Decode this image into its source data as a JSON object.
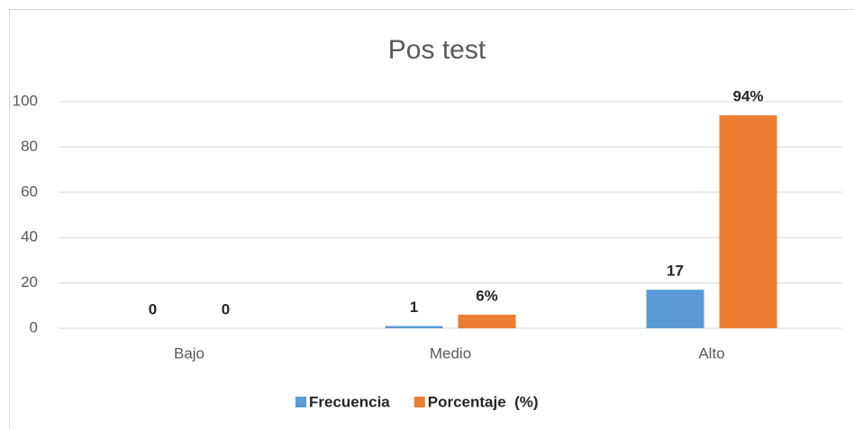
{
  "chart_data": {
    "type": "bar",
    "title": "Pos test",
    "categories": [
      "Bajo",
      "Medio",
      "Alto"
    ],
    "series": [
      {
        "name": "Frecuencia",
        "color": "#5b9bd5",
        "values": [
          0,
          1,
          17
        ]
      },
      {
        "name": "Porcentaje  (%)",
        "color": "#ed7d31",
        "values": [
          0,
          6,
          94
        ],
        "value_labels": [
          "0",
          "6%",
          "94%"
        ]
      }
    ],
    "ylim": [
      0,
      100
    ],
    "yticks": [
      0,
      20,
      40,
      60,
      80,
      100
    ],
    "grid": true,
    "legend": "bottom"
  }
}
